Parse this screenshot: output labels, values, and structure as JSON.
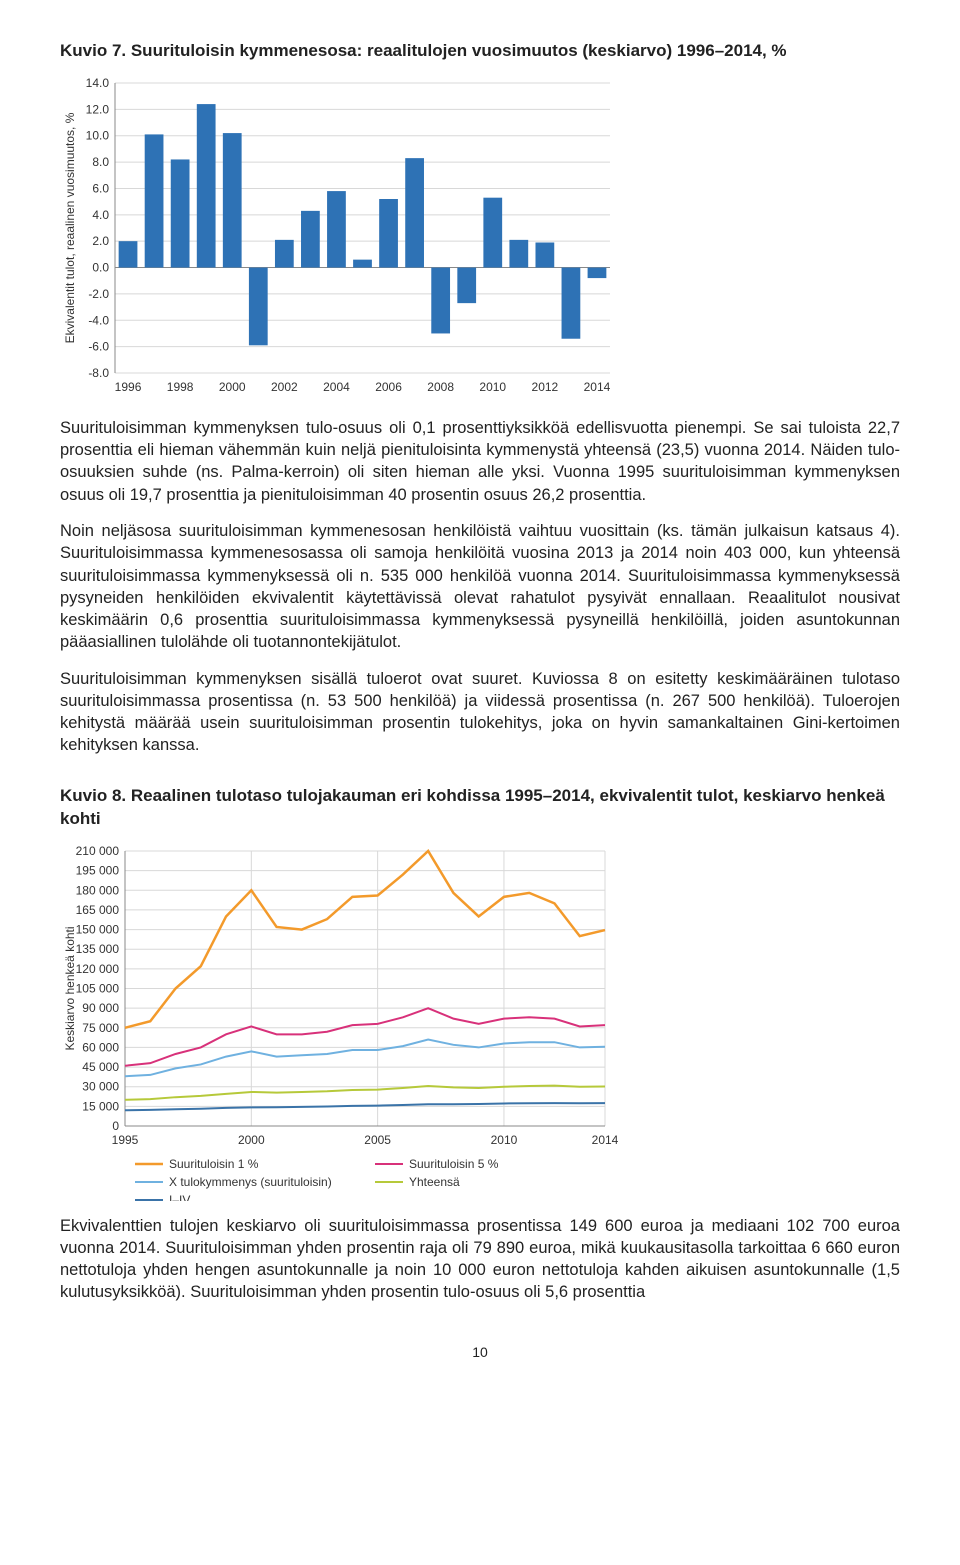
{
  "figure7": {
    "title": "Kuvio 7. Suurituloisin kymmenesosa: reaalitulojen vuosimuutos (keskiarvo) 1996–2014, %",
    "type": "bar",
    "y_label": "Ekvivalentit tulot, reaalinen vuosimuutos, %",
    "ylim": [
      -8.0,
      14.0
    ],
    "ytick_step": 2.0,
    "x_categories": [
      "1996",
      "1997",
      "1998",
      "1999",
      "2000",
      "2001",
      "2002",
      "2003",
      "2004",
      "2005",
      "2006",
      "2007",
      "2008",
      "2009",
      "2010",
      "2011",
      "2012",
      "2013",
      "2014"
    ],
    "x_labels_shown": [
      "1996",
      "1998",
      "2000",
      "2002",
      "2004",
      "2006",
      "2008",
      "2010",
      "2012",
      "2014"
    ],
    "values": [
      2.0,
      10.1,
      8.2,
      12.4,
      10.2,
      -5.9,
      2.1,
      4.3,
      5.8,
      0.6,
      5.2,
      8.3,
      -5.0,
      -2.7,
      5.3,
      2.1,
      1.9,
      -5.4,
      -0.8
    ],
    "bar_color": "#2e72b5",
    "background_color": "#ffffff",
    "grid_color": "#d8d8d8",
    "axis_color": "#888888",
    "label_fontsize": 12,
    "bar_width": 0.72
  },
  "paragraphs": {
    "p1": "Suurituloisimman kymmenyksen tulo-osuus oli 0,1 prosenttiyksikköä edellisvuotta pienempi. Se sai tuloista 22,7 prosenttia eli hieman vähemmän kuin neljä pienituloisinta kymmenystä yhteensä (23,5) vuonna 2014. Näiden tulo-osuuksien suhde (ns. Palma-kerroin) oli siten hieman alle yksi. Vuonna 1995 suurituloisimman kymmenyksen osuus oli 19,7 prosenttia ja pienituloisimman 40 prosentin osuus 26,2 prosenttia.",
    "p2": "Noin neljäsosa suurituloisimman kymmenesosan henkilöistä vaihtuu vuosittain (ks. tämän julkaisun katsaus 4). Suurituloisimmassa kymmenesosassa oli samoja henkilöitä vuosina 2013 ja 2014 noin 403 000, kun yhteensä suurituloisimmassa kymmenyksessä oli n. 535 000 henkilöä vuonna 2014. Suurituloisimmassa kymmenyksessä pysyneiden henkilöiden ekvivalentit käytettävissä olevat rahatulot pysyivät ennallaan. Reaalitulot nousivat keskimäärin 0,6 prosenttia suurituloisimmassa kymmenyksessä pysyneillä henkilöillä, joiden asuntokunnan pääasiallinen tulolähde oli tuotannontekijätulot.",
    "p3": "Suurituloisimman kymmenyksen sisällä tuloerot ovat suuret. Kuviossa 8 on esitetty keskimääräinen tulotaso suurituloisimmassa prosentissa (n. 53 500 henkilöä) ja viidessä prosentissa (n. 267 500 henkilöä). Tuloerojen kehitystä määrää usein suurituloisimman prosentin tulokehitys, joka on hyvin samankaltainen Gini-kertoimen kehityksen kanssa.",
    "p4": "Ekvivalenttien tulojen keskiarvo oli suurituloisimmassa prosentissa 149 600 euroa ja mediaani 102 700 euroa vuonna 2014. Suurituloisimman yhden prosentin raja oli 79 890 euroa, mikä kuukausitasolla tarkoittaa 6 660 euron nettotuloja yhden hengen asuntokunnalle ja noin 10 000 euron nettotuloja kahden aikuisen asuntokunnalle (1,5 kulutusyksikköä). Suurituloisimman yhden prosentin tulo-osuus oli 5,6 prosenttia"
  },
  "figure8": {
    "title": "Kuvio 8. Reaalinen tulotaso tulojakauman eri kohdissa 1995–2014, ekvivalentit tulot, keskiarvo henkeä kohti",
    "type": "line",
    "y_label": "Keskiarvo henkeä kohti",
    "ylim": [
      0,
      210000
    ],
    "ytick_step": 15000,
    "x_years": [
      1995,
      1996,
      1997,
      1998,
      1999,
      2000,
      2001,
      2002,
      2003,
      2004,
      2005,
      2006,
      2007,
      2008,
      2009,
      2010,
      2011,
      2012,
      2013,
      2014
    ],
    "x_labels_shown": [
      "1995",
      "2000",
      "2005",
      "2010",
      "2014"
    ],
    "series": [
      {
        "name": "Suurituloisin 1 %",
        "color": "#f39a2b",
        "width": 2.5,
        "values": [
          75000,
          80000,
          105000,
          122000,
          160000,
          180000,
          152000,
          150000,
          158000,
          175000,
          176000,
          192000,
          210000,
          178000,
          160000,
          175000,
          178000,
          170000,
          145000,
          149600
        ]
      },
      {
        "name": "Suurituloisin 5 %",
        "color": "#d8317a",
        "width": 2,
        "values": [
          46000,
          48000,
          55000,
          60000,
          70000,
          76000,
          70000,
          70000,
          72000,
          77000,
          78000,
          83000,
          90000,
          82000,
          78000,
          82000,
          83000,
          82000,
          76000,
          77000
        ]
      },
      {
        "name": "X tulokymmenys (suurituloisin)",
        "color": "#6fb1e0",
        "width": 2,
        "values": [
          38000,
          39000,
          44000,
          47000,
          53000,
          57000,
          53000,
          54000,
          55000,
          58000,
          58000,
          61000,
          66000,
          62000,
          60000,
          63000,
          64000,
          64000,
          60000,
          60500
        ]
      },
      {
        "name": "Yhteensä",
        "color": "#b6c93a",
        "width": 2,
        "values": [
          20000,
          20500,
          22000,
          23000,
          24500,
          26000,
          25500,
          26000,
          26500,
          27500,
          27800,
          29000,
          30500,
          29500,
          29000,
          30000,
          30500,
          30800,
          30000,
          30200
        ]
      },
      {
        "name": "I–IV",
        "color": "#3a73a8",
        "width": 2,
        "values": [
          12000,
          12300,
          12800,
          13200,
          13800,
          14200,
          14300,
          14600,
          14900,
          15400,
          15600,
          16000,
          16600,
          16600,
          16800,
          17200,
          17400,
          17500,
          17400,
          17500
        ]
      }
    ],
    "background_color": "#ffffff",
    "grid_color": "#d8d8d8",
    "axis_color": "#888888",
    "label_fontsize": 12,
    "line_width": 2
  },
  "page_number": "10"
}
